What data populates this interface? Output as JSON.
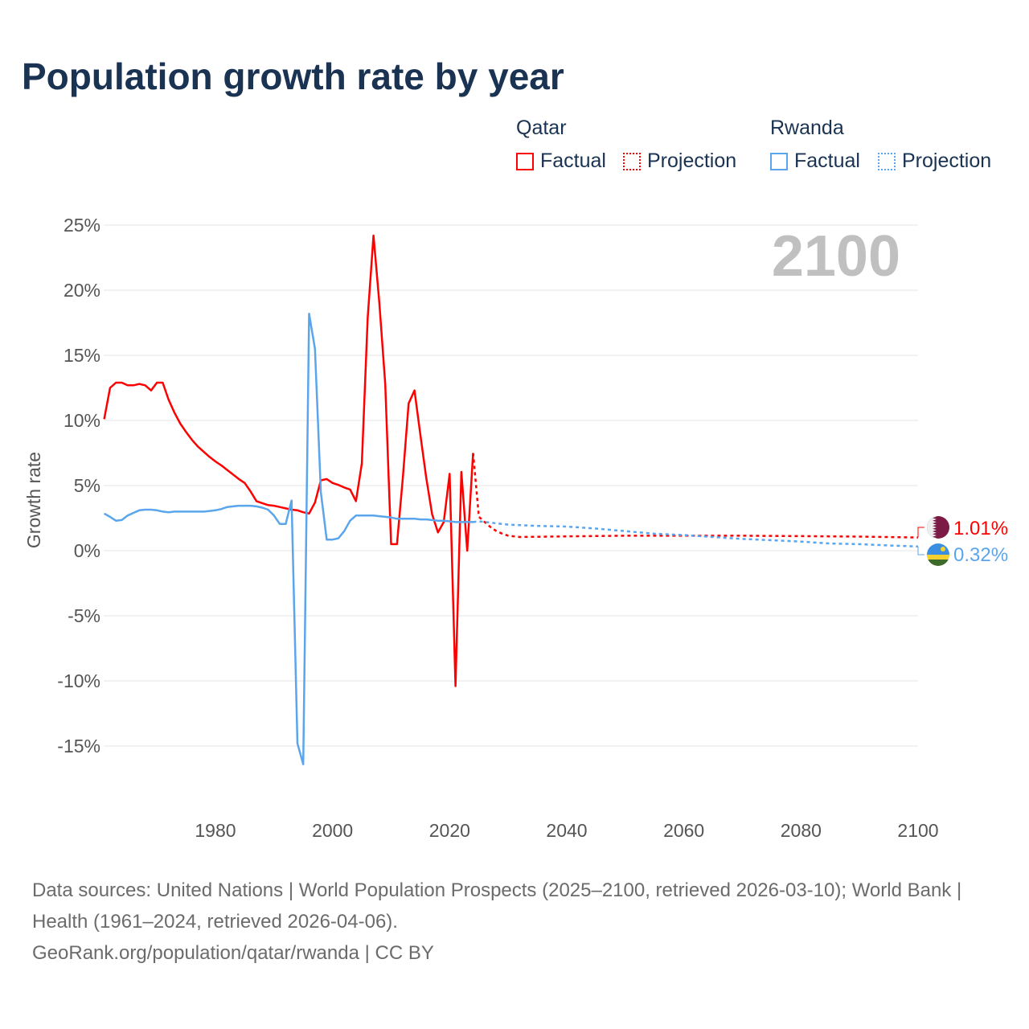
{
  "title": "Population growth rate by year",
  "legend": {
    "groups": [
      {
        "name": "Qatar",
        "factual": "Factual",
        "projection": "Projection",
        "color": "#ff0000"
      },
      {
        "name": "Rwanda",
        "factual": "Factual",
        "projection": "Projection",
        "color": "#5aa5ec"
      }
    ]
  },
  "footer": {
    "line1": "Data sources: United Nations | World Population Prospects (2025–2100, retrieved 2026-03-10); World Bank | Health (1961–2024, retrieved 2026-04-06).",
    "line2": "GeoRank.org/population/qatar/rwanda | CC BY"
  },
  "chart_data": {
    "type": "line",
    "title": "Population growth rate by year",
    "ylabel": "Growth rate",
    "xlabel": "",
    "year_label": "2100",
    "xlim": [
      1961,
      2100
    ],
    "ylim": [
      -17.5,
      25
    ],
    "x_ticks": [
      1980,
      2000,
      2020,
      2040,
      2060,
      2080,
      2100
    ],
    "y_ticks": [
      -15,
      -10,
      -5,
      0,
      5,
      10,
      15,
      20,
      25
    ],
    "y_tick_labels": [
      "-15%",
      "-10%",
      "-5%",
      "0%",
      "5%",
      "10%",
      "15%",
      "20%",
      "25%"
    ],
    "grid": true,
    "series": [
      {
        "name": "Qatar",
        "color": "#ff0000",
        "end_label": "1.01%",
        "factual_start": 1961,
        "factual": [
          10.1,
          12.5,
          12.9,
          12.9,
          12.7,
          12.7,
          12.8,
          12.7,
          12.3,
          12.9,
          12.9,
          11.6,
          10.6,
          9.75,
          9.1,
          8.5,
          8.0,
          7.6,
          7.2,
          6.85,
          6.55,
          6.2,
          5.85,
          5.5,
          5.2,
          4.55,
          3.8,
          3.65,
          3.5,
          3.45,
          3.35,
          3.25,
          3.15,
          3.1,
          2.95,
          2.85,
          3.7,
          5.4,
          5.5,
          5.2,
          5.05,
          4.85,
          4.7,
          3.8,
          6.7,
          17.9,
          24.2,
          19.0,
          12.8,
          0.5,
          0.5,
          5.6,
          11.3,
          12.3,
          8.9,
          5.6,
          2.8,
          1.4,
          2.2,
          5.9,
          -10.4,
          6.05,
          0.0,
          7.5
        ],
        "projection": [
          [
            2024,
            7.5
          ],
          [
            2025,
            2.6
          ],
          [
            2026,
            2.2
          ],
          [
            2027,
            1.8
          ],
          [
            2028,
            1.5
          ],
          [
            2029,
            1.3
          ],
          [
            2030,
            1.15
          ],
          [
            2032,
            1.05
          ],
          [
            2040,
            1.1
          ],
          [
            2050,
            1.15
          ],
          [
            2060,
            1.15
          ],
          [
            2070,
            1.15
          ],
          [
            2080,
            1.12
          ],
          [
            2090,
            1.08
          ],
          [
            2100,
            1.01
          ]
        ]
      },
      {
        "name": "Rwanda",
        "color": "#5aa5ec",
        "end_label": "0.32%",
        "factual_start": 1961,
        "factual": [
          2.85,
          2.6,
          2.3,
          2.35,
          2.7,
          2.9,
          3.1,
          3.15,
          3.15,
          3.1,
          3.0,
          2.95,
          3.0,
          3.0,
          3.0,
          3.0,
          3.0,
          3.0,
          3.05,
          3.1,
          3.2,
          3.35,
          3.4,
          3.45,
          3.45,
          3.45,
          3.4,
          3.3,
          3.15,
          2.7,
          2.05,
          2.05,
          3.85,
          -14.8,
          -16.4,
          18.2,
          15.5,
          4.5,
          0.85,
          0.85,
          0.95,
          1.5,
          2.3,
          2.7,
          2.7,
          2.7,
          2.7,
          2.65,
          2.6,
          2.55,
          2.45,
          2.45,
          2.45,
          2.45,
          2.4,
          2.4,
          2.35,
          2.3,
          2.3,
          2.25,
          2.2,
          2.2,
          2.2,
          2.2
        ],
        "projection": [
          [
            2024,
            2.2
          ],
          [
            2025,
            2.25
          ],
          [
            2030,
            2.0
          ],
          [
            2035,
            1.9
          ],
          [
            2040,
            1.85
          ],
          [
            2045,
            1.7
          ],
          [
            2050,
            1.5
          ],
          [
            2055,
            1.3
          ],
          [
            2060,
            1.2
          ],
          [
            2065,
            1.05
          ],
          [
            2070,
            0.9
          ],
          [
            2075,
            0.8
          ],
          [
            2080,
            0.7
          ],
          [
            2085,
            0.55
          ],
          [
            2090,
            0.5
          ],
          [
            2095,
            0.4
          ],
          [
            2100,
            0.32
          ]
        ]
      }
    ]
  }
}
